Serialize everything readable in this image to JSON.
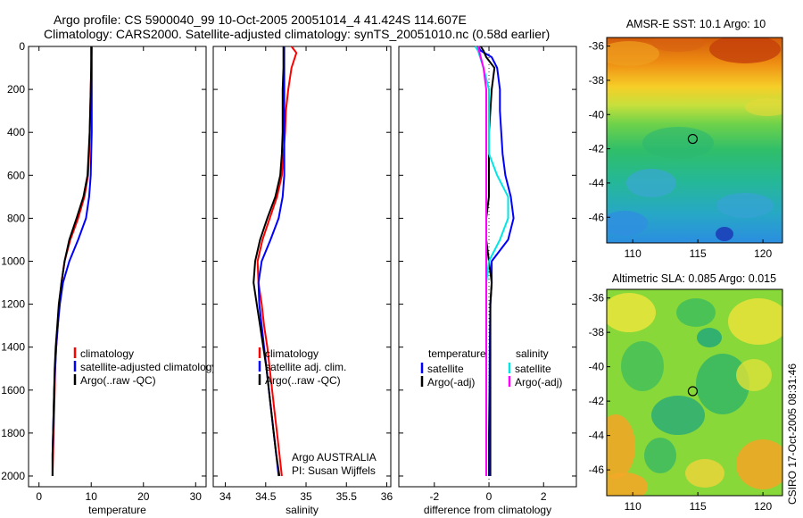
{
  "header": {
    "title_line1": "Argo profile: CS 5900040_99 10-Oct-2005 20051014_4 41.424S 114.607E",
    "title_line2": "Climatology: CARS2000. Satellite-adjusted climatology: synTS_20051010.nc (0.58d earlier)"
  },
  "colors": {
    "climatology": "#ff0000",
    "satellite": "#0000ff",
    "argo": "#000000",
    "sat_salinity": "#00e5e5",
    "argo_salinity": "#ff00ff",
    "frame": "#000000"
  },
  "chart_data": [
    {
      "type": "line",
      "id": "temperature-panel",
      "xlabel": "temperature",
      "xlim": [
        -2,
        32
      ],
      "ylim": [
        0,
        2050
      ],
      "y_inverted": true,
      "xticks": [
        0,
        10,
        20,
        30
      ],
      "yticks": [
        0,
        200,
        400,
        600,
        800,
        1000,
        1200,
        1400,
        1600,
        1800,
        2000
      ],
      "legend": {
        "position": "lower-right",
        "entries": [
          "climatology",
          "satellite-adjusted climatology",
          "Argo(..raw -QC)"
        ]
      },
      "series": [
        {
          "name": "climatology",
          "color": "#ff0000",
          "points": [
            [
              10.1,
              0
            ],
            [
              10.0,
              100
            ],
            [
              9.9,
              200
            ],
            [
              9.8,
              300
            ],
            [
              9.7,
              400
            ],
            [
              9.6,
              500
            ],
            [
              9.4,
              600
            ],
            [
              8.7,
              700
            ],
            [
              7.5,
              800
            ],
            [
              6.0,
              900
            ],
            [
              4.9,
              1000
            ],
            [
              4.3,
              1100
            ],
            [
              3.9,
              1200
            ],
            [
              3.6,
              1300
            ],
            [
              3.3,
              1400
            ],
            [
              3.1,
              1500
            ],
            [
              3.0,
              1600
            ],
            [
              2.9,
              1700
            ],
            [
              2.8,
              1800
            ],
            [
              2.7,
              1900
            ],
            [
              2.6,
              2000
            ]
          ]
        },
        {
          "name": "satellite",
          "color": "#0000ff",
          "points": [
            [
              10.1,
              0
            ],
            [
              10.1,
              100
            ],
            [
              10.1,
              200
            ],
            [
              10.1,
              300
            ],
            [
              10.1,
              400
            ],
            [
              10.0,
              500
            ],
            [
              9.9,
              600
            ],
            [
              9.6,
              700
            ],
            [
              9.0,
              800
            ],
            [
              7.5,
              900
            ],
            [
              5.8,
              1000
            ],
            [
              4.6,
              1100
            ],
            [
              4.0,
              1200
            ],
            [
              3.6,
              1300
            ],
            [
              3.3,
              1400
            ],
            [
              3.1,
              1500
            ],
            [
              2.9,
              1600
            ],
            [
              2.8,
              1700
            ],
            [
              2.7,
              1800
            ],
            [
              2.6,
              1900
            ],
            [
              2.6,
              2000
            ]
          ]
        },
        {
          "name": "Argo",
          "color": "#000000",
          "points": [
            [
              10.0,
              0
            ],
            [
              10.0,
              100
            ],
            [
              9.9,
              200
            ],
            [
              9.8,
              300
            ],
            [
              9.7,
              400
            ],
            [
              9.5,
              500
            ],
            [
              9.3,
              600
            ],
            [
              8.5,
              700
            ],
            [
              7.2,
              800
            ],
            [
              5.8,
              900
            ],
            [
              4.9,
              1000
            ],
            [
              4.3,
              1100
            ],
            [
              3.8,
              1200
            ],
            [
              3.5,
              1300
            ],
            [
              3.2,
              1400
            ],
            [
              3.0,
              1500
            ],
            [
              2.9,
              1600
            ],
            [
              2.8,
              1700
            ],
            [
              2.7,
              1800
            ],
            [
              2.6,
              1900
            ],
            [
              2.6,
              2000
            ]
          ]
        }
      ]
    },
    {
      "type": "line",
      "id": "salinity-panel",
      "xlabel": "salinity",
      "xlim": [
        33.85,
        36.05
      ],
      "ylim": [
        0,
        2050
      ],
      "y_inverted": true,
      "xticks": [
        34,
        34.5,
        35,
        35.5,
        36
      ],
      "annotation": [
        "Argo AUSTRALIA",
        "PI: Susan Wijffels"
      ],
      "legend": {
        "position": "lower-right",
        "entries": [
          "climatology",
          "satellite adj. clim.",
          "Argo(..raw -QC)"
        ]
      },
      "series": [
        {
          "name": "climatology",
          "color": "#ff0000",
          "points": [
            [
              34.82,
              0
            ],
            [
              34.88,
              30
            ],
            [
              34.82,
              100
            ],
            [
              34.78,
              200
            ],
            [
              34.75,
              300
            ],
            [
              34.74,
              400
            ],
            [
              34.72,
              500
            ],
            [
              34.7,
              600
            ],
            [
              34.64,
              700
            ],
            [
              34.55,
              800
            ],
            [
              34.46,
              900
            ],
            [
              34.4,
              1000
            ],
            [
              34.41,
              1100
            ],
            [
              34.45,
              1200
            ],
            [
              34.48,
              1300
            ],
            [
              34.52,
              1400
            ],
            [
              34.55,
              1500
            ],
            [
              34.58,
              1600
            ],
            [
              34.61,
              1700
            ],
            [
              34.64,
              1800
            ],
            [
              34.67,
              1900
            ],
            [
              34.7,
              2000
            ]
          ]
        },
        {
          "name": "satellite",
          "color": "#0000ff",
          "points": [
            [
              34.73,
              0
            ],
            [
              34.73,
              100
            ],
            [
              34.73,
              200
            ],
            [
              34.73,
              300
            ],
            [
              34.73,
              400
            ],
            [
              34.73,
              500
            ],
            [
              34.73,
              600
            ],
            [
              34.71,
              700
            ],
            [
              34.66,
              800
            ],
            [
              34.56,
              900
            ],
            [
              34.45,
              1000
            ],
            [
              34.41,
              1100
            ],
            [
              34.42,
              1200
            ],
            [
              34.45,
              1300
            ],
            [
              34.48,
              1400
            ],
            [
              34.51,
              1500
            ],
            [
              34.54,
              1600
            ],
            [
              34.57,
              1700
            ],
            [
              34.6,
              1800
            ],
            [
              34.63,
              1900
            ],
            [
              34.66,
              2000
            ]
          ]
        },
        {
          "name": "Argo",
          "color": "#000000",
          "points": [
            [
              34.72,
              0
            ],
            [
              34.72,
              100
            ],
            [
              34.71,
              200
            ],
            [
              34.71,
              300
            ],
            [
              34.71,
              400
            ],
            [
              34.7,
              500
            ],
            [
              34.68,
              600
            ],
            [
              34.62,
              700
            ],
            [
              34.52,
              800
            ],
            [
              34.43,
              900
            ],
            [
              34.37,
              1000
            ],
            [
              34.35,
              1100
            ],
            [
              34.39,
              1200
            ],
            [
              34.43,
              1300
            ],
            [
              34.47,
              1400
            ],
            [
              34.51,
              1500
            ],
            [
              34.54,
              1600
            ],
            [
              34.57,
              1700
            ],
            [
              34.6,
              1800
            ],
            [
              34.63,
              1900
            ],
            [
              34.67,
              2000
            ]
          ]
        }
      ]
    },
    {
      "type": "line",
      "id": "difference-panel",
      "xlabel": "difference from climatology",
      "xlim": [
        -3.3,
        3.2
      ],
      "ylim": [
        0,
        2050
      ],
      "y_inverted": true,
      "xticks": [
        -2,
        0,
        2
      ],
      "zero_line": true,
      "legend": {
        "position": "lower-center",
        "columns": [
          {
            "heading": "temperature",
            "entries": [
              "satellite",
              "Argo(-adj)"
            ]
          },
          {
            "heading": "salinity",
            "entries": [
              "satellite",
              "Argo(-adj)"
            ]
          }
        ]
      },
      "series": [
        {
          "name": "temperature satellite",
          "color": "#0000ff",
          "points": [
            [
              -0.4,
              0
            ],
            [
              -0.3,
              20
            ],
            [
              0.1,
              50
            ],
            [
              0.3,
              100
            ],
            [
              0.4,
              200
            ],
            [
              0.4,
              300
            ],
            [
              0.45,
              400
            ],
            [
              0.5,
              500
            ],
            [
              0.6,
              600
            ],
            [
              0.8,
              700
            ],
            [
              0.9,
              800
            ],
            [
              0.7,
              900
            ],
            [
              0.1,
              1000
            ],
            [
              0.1,
              1100
            ],
            [
              0.05,
              1200
            ],
            [
              0.03,
              1400
            ],
            [
              0.02,
              1600
            ],
            [
              0.0,
              1800
            ],
            [
              0.0,
              2000
            ]
          ]
        },
        {
          "name": "temperature Argo(-adj)",
          "color": "#000000",
          "points": [
            [
              -0.3,
              0
            ],
            [
              -0.2,
              20
            ],
            [
              -0.1,
              50
            ],
            [
              0.2,
              100
            ],
            [
              0.1,
              200
            ],
            [
              0.05,
              300
            ],
            [
              0.0,
              400
            ],
            [
              0.0,
              500
            ],
            [
              0.0,
              600
            ],
            [
              0.0,
              700
            ],
            [
              -0.1,
              800
            ],
            [
              -0.1,
              900
            ],
            [
              0.0,
              1000
            ],
            [
              0.1,
              1100
            ],
            [
              0.05,
              1200
            ],
            [
              0.05,
              1400
            ],
            [
              0.05,
              1600
            ],
            [
              0.05,
              1800
            ],
            [
              0.05,
              2000
            ]
          ]
        },
        {
          "name": "salinity satellite",
          "color": "#00e5e5",
          "points": [
            [
              -0.5,
              0
            ],
            [
              -0.4,
              20
            ],
            [
              -0.2,
              100
            ],
            [
              0.0,
              200
            ],
            [
              0.0,
              300
            ],
            [
              0.0,
              400
            ],
            [
              0.0,
              500
            ],
            [
              0.3,
              600
            ],
            [
              0.7,
              700
            ],
            [
              0.7,
              800
            ],
            [
              0.4,
              900
            ],
            [
              0.0,
              1000
            ],
            [
              -0.1,
              1100
            ],
            [
              -0.1,
              1300
            ],
            [
              -0.1,
              1500
            ],
            [
              -0.1,
              1700
            ],
            [
              -0.1,
              1900
            ],
            [
              -0.1,
              2000
            ]
          ]
        },
        {
          "name": "salinity Argo(-adj)",
          "color": "#ff00ff",
          "points": [
            [
              -0.4,
              0
            ],
            [
              -0.3,
              50
            ],
            [
              -0.2,
              100
            ],
            [
              -0.1,
              200
            ],
            [
              -0.1,
              300
            ],
            [
              -0.1,
              400
            ],
            [
              -0.1,
              500
            ],
            [
              -0.1,
              600
            ],
            [
              -0.1,
              700
            ],
            [
              -0.1,
              800
            ],
            [
              -0.1,
              900
            ],
            [
              -0.1,
              1000
            ],
            [
              -0.1,
              1100
            ],
            [
              -0.1,
              1300
            ],
            [
              -0.1,
              1500
            ],
            [
              -0.1,
              1700
            ],
            [
              -0.1,
              1900
            ],
            [
              -0.1,
              2000
            ]
          ]
        }
      ]
    },
    {
      "type": "heatmap",
      "id": "sst-map",
      "title": "AMSR-E SST: 10.1 Argo: 10",
      "xlim": [
        108,
        121.5
      ],
      "ylim": [
        -47.5,
        -35.5
      ],
      "xticks": [
        110,
        115,
        120
      ],
      "yticks": [
        -36,
        -38,
        -40,
        -42,
        -44,
        -46
      ],
      "marker": {
        "lon": 114.607,
        "lat": -41.424
      }
    },
    {
      "type": "heatmap",
      "id": "sla-map",
      "title": "Altimetric SLA: 0.085 Argo: 0.015",
      "xlim": [
        108,
        121.5
      ],
      "ylim": [
        -47.5,
        -35.5
      ],
      "xticks": [
        110,
        115,
        120
      ],
      "yticks": [
        -36,
        -38,
        -40,
        -42,
        -44,
        -46
      ],
      "marker": {
        "lon": 114.607,
        "lat": -41.424
      }
    }
  ],
  "footer": {
    "stamp": "CSIRO 17-Oct-2005 08:31:46"
  }
}
